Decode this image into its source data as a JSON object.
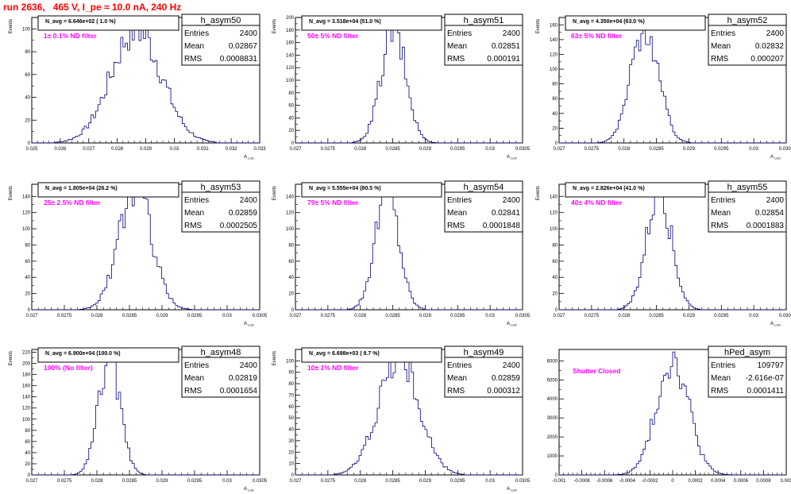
{
  "page_title": "run 2636,   465 V, I_pe ≈ 10.0 nA, 240 Hz",
  "colors": {
    "hist": "#000080",
    "annotation": "#ff00ff",
    "title": "#ff0000"
  },
  "chart_data": [
    {
      "type": "histogram",
      "name": "h_asym50",
      "ylabel": "Events",
      "xlabel": "A_{LUD}",
      "xlim": [
        0.025,
        0.033
      ],
      "ylim": [
        0,
        110
      ],
      "xticks": [
        0.025,
        0.026,
        0.027,
        0.028,
        0.029,
        0.03,
        0.031,
        0.032,
        0.033
      ],
      "xtick_labels": [
        "0.025",
        "0.026",
        "0.027",
        "0.028",
        "0.029",
        "0.03",
        "0.031",
        "0.032",
        "0.033"
      ],
      "yticks": [
        0,
        20,
        40,
        60,
        80,
        100
      ],
      "stats": {
        "Entries": "2400",
        "Mean": "0.02867",
        "RMS": "0.0008831"
      },
      "navg": "N_avg = 6.646e+02 ( 1.0 %)",
      "filter": "1± 0.1% ND filter",
      "mean": 0.02867,
      "sigma": 0.00088,
      "peak": 100
    },
    {
      "type": "histogram",
      "name": "h_asym51",
      "ylabel": "Events",
      "xlabel": "A_{LUD}",
      "xlim": [
        0.027,
        0.0305
      ],
      "ylim": [
        0,
        200
      ],
      "xticks": [
        0.027,
        0.0275,
        0.028,
        0.0285,
        0.029,
        0.0295,
        0.03,
        0.0305
      ],
      "xtick_labels": [
        "0.027",
        "0.0275",
        "0.028",
        "0.0285",
        "0.029",
        "0.0295",
        "0.03",
        "0.0305"
      ],
      "yticks": [
        0,
        20,
        40,
        60,
        80,
        100,
        120,
        140,
        160,
        180,
        200
      ],
      "stats": {
        "Entries": "2400",
        "Mean": "0.02851",
        "RMS": "0.000191"
      },
      "navg": "N_avg = 3.518e+04 (51.0 %)",
      "filter": "50± 5% ND filter",
      "mean": 0.02851,
      "sigma": 0.00019,
      "peak": 180
    },
    {
      "type": "histogram",
      "name": "h_asym52",
      "ylabel": "Events",
      "xlabel": "A_{LUD}",
      "xlim": [
        0.027,
        0.0305
      ],
      "ylim": [
        0,
        170
      ],
      "xticks": [
        0.027,
        0.0275,
        0.028,
        0.0285,
        0.029,
        0.0295,
        0.03,
        0.0305
      ],
      "xtick_labels": [
        "0.027",
        "0.0275",
        "0.028",
        "0.0285",
        "0.029",
        "0.0295",
        "0.03",
        "0.0305"
      ],
      "yticks": [
        0,
        20,
        40,
        60,
        80,
        100,
        120,
        140,
        160
      ],
      "stats": {
        "Entries": "2400",
        "Mean": "0.02832",
        "RMS": "0.000207"
      },
      "navg": "N_avg = 4.350e+04 (63.0 %)",
      "filter": "63± 5% ND filter",
      "mean": 0.02832,
      "sigma": 0.00021,
      "peak": 160
    },
    {
      "type": "histogram",
      "name": "h_asym53",
      "ylabel": "Events",
      "xlabel": "A_{LUD}",
      "xlim": [
        0.027,
        0.0305
      ],
      "ylim": [
        0,
        155
      ],
      "xticks": [
        0.027,
        0.0275,
        0.028,
        0.0285,
        0.029,
        0.0295,
        0.03,
        0.0305
      ],
      "xtick_labels": [
        "0.027",
        "0.0275",
        "0.028",
        "0.0285",
        "0.029",
        "0.0295",
        "0.03",
        "0.0305"
      ],
      "yticks": [
        0,
        20,
        40,
        60,
        80,
        100,
        120,
        140
      ],
      "stats": {
        "Entries": "2400",
        "Mean": "0.02859",
        "RMS": "0.0002505"
      },
      "navg": "N_avg = 1.805e+04 (26.2 %)",
      "filter": "25± 2.5% ND filter",
      "mean": 0.02859,
      "sigma": 0.00025,
      "peak": 150
    },
    {
      "type": "histogram",
      "name": "h_asym54",
      "ylabel": "Events",
      "xlabel": "A_{LUD}",
      "xlim": [
        0.027,
        0.0305
      ],
      "ylim": [
        0,
        155
      ],
      "xticks": [
        0.027,
        0.0275,
        0.028,
        0.0285,
        0.029,
        0.0295,
        0.03,
        0.0305
      ],
      "xtick_labels": [
        "0.027",
        "0.0275",
        "0.028",
        "0.0285",
        "0.029",
        "0.0295",
        "0.03",
        "0.0305"
      ],
      "yticks": [
        0,
        20,
        40,
        60,
        80,
        100,
        120,
        140
      ],
      "stats": {
        "Entries": "2400",
        "Mean": "0.02841",
        "RMS": "0.0001848"
      },
      "navg": "N_avg = 5.555e+04 (80.5 %)",
      "filter": "79± 5% ND filter",
      "mean": 0.02841,
      "sigma": 0.00018,
      "peak": 150
    },
    {
      "type": "histogram",
      "name": "h_asym55",
      "ylabel": "Events",
      "xlabel": "A_{LUD}",
      "xlim": [
        0.027,
        0.0305
      ],
      "ylim": [
        0,
        155
      ],
      "xticks": [
        0.027,
        0.0275,
        0.028,
        0.0285,
        0.029,
        0.0295,
        0.03,
        0.0305
      ],
      "xtick_labels": [
        "0.027",
        "0.0275",
        "0.028",
        "0.0285",
        "0.029",
        "0.0295",
        "0.03",
        "0.0305"
      ],
      "yticks": [
        0,
        20,
        40,
        60,
        80,
        100,
        120,
        140
      ],
      "stats": {
        "Entries": "2400",
        "Mean": "0.02854",
        "RMS": "0.0001883"
      },
      "navg": "N_avg = 2.826e+04 (41.0 %)",
      "filter": "40± 4% ND filter",
      "mean": 0.02854,
      "sigma": 0.00019,
      "peak": 150
    },
    {
      "type": "histogram",
      "name": "h_asym48",
      "ylabel": "Events",
      "xlabel": "A_{LUD}",
      "xlim": [
        0.027,
        0.0305
      ],
      "ylim": [
        0,
        225
      ],
      "xticks": [
        0.027,
        0.0275,
        0.028,
        0.0285,
        0.029,
        0.0295,
        0.03,
        0.0305
      ],
      "xtick_labels": [
        "0.027",
        "0.0275",
        "0.028",
        "0.0285",
        "0.029",
        "0.0295",
        "0.03",
        "0.0305"
      ],
      "yticks": [
        0,
        20,
        40,
        60,
        80,
        100,
        120,
        140,
        160,
        180,
        200,
        220
      ],
      "stats": {
        "Entries": "2400",
        "Mean": "0.02819",
        "RMS": "0.0001654"
      },
      "navg": "N_avg = 6.900e+04 (100.0 %)",
      "filter": "100% (No filter)",
      "mean": 0.02819,
      "sigma": 0.000165,
      "peak": 210
    },
    {
      "type": "histogram",
      "name": "h_asym49",
      "ylabel": "Events",
      "xlabel": "A_{LUD}",
      "xlim": [
        0.027,
        0.0305
      ],
      "ylim": [
        0,
        110
      ],
      "xticks": [
        0.027,
        0.0275,
        0.028,
        0.0285,
        0.029,
        0.0295,
        0.03,
        0.0305
      ],
      "xtick_labels": [
        "0.027",
        "0.0275",
        "0.028",
        "0.0285",
        "0.029",
        "0.0295",
        "0.03",
        "0.0305"
      ],
      "yticks": [
        0,
        10,
        20,
        30,
        40,
        50,
        60,
        70,
        80,
        90,
        100
      ],
      "stats": {
        "Entries": "2400",
        "Mean": "0.02859",
        "RMS": "0.000312"
      },
      "navg": "N_avg = 6.698e+03 ( 9.7 %)",
      "filter": "10± 1% ND filter",
      "mean": 0.02859,
      "sigma": 0.00031,
      "peak": 103
    },
    {
      "type": "histogram",
      "name": "hPed_asym",
      "ylabel": "",
      "xlabel": "",
      "xlim": [
        -0.001,
        0.001
      ],
      "ylim": [
        0,
        6600
      ],
      "xticks": [
        -0.001,
        -0.0008,
        -0.0006,
        -0.0004,
        -0.0002,
        0,
        0.0002,
        0.0004,
        0.0006,
        0.0008,
        0.001
      ],
      "xtick_labels": [
        "-0.001",
        "-0.0008",
        "-0.0006",
        "-0.0004",
        "-0.0002",
        "0",
        "0.0002",
        "0.0004",
        "0.0006",
        "0.0008",
        "0.001"
      ],
      "yticks": [
        0,
        1000,
        2000,
        3000,
        4000,
        5000,
        6000
      ],
      "stats": {
        "Entries": "109797",
        "Mean": "-2.616e-07",
        "RMS": "0.0001411"
      },
      "navg": "",
      "filter": "Shutter Closed",
      "mean": 0.0,
      "sigma": 0.000141,
      "peak": 6200
    }
  ]
}
